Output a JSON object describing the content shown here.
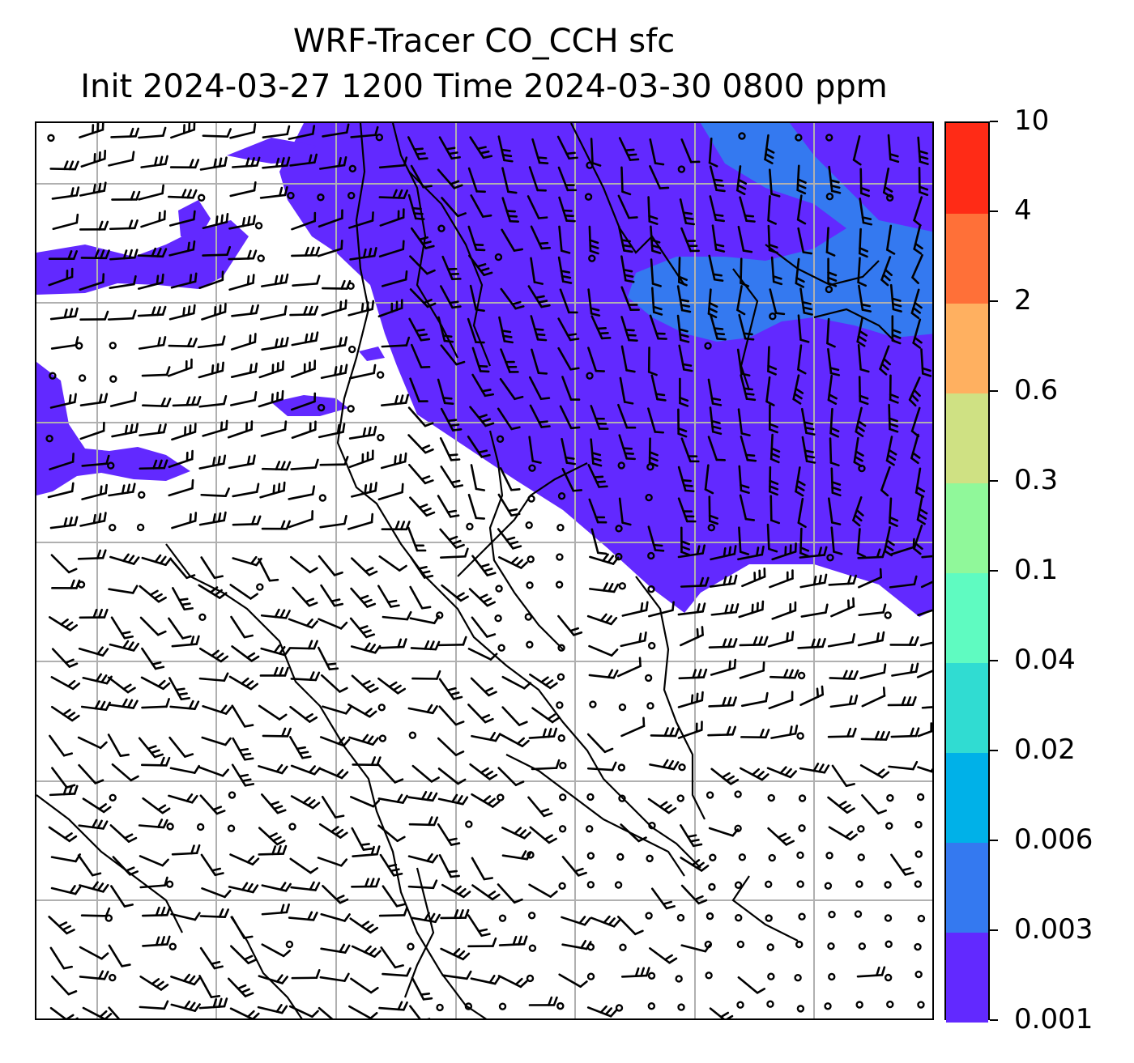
{
  "title": {
    "line1": "WRF-Tracer CO_CCH sfc",
    "line2": "Init 2024-03-27 1200 Time 2024-03-30 0800 ppm"
  },
  "colorbar": {
    "labels": [
      "0.001",
      "0.003",
      "0.006",
      "0.02",
      "0.04",
      "0.1",
      "0.3",
      "0.6",
      "2",
      "4",
      "10"
    ],
    "colors": [
      "#6229ff",
      "#3479f0",
      "#00b1e8",
      "#30dcd2",
      "#5ffbc1",
      "#90f89a",
      "#cfe183",
      "#ffb060",
      "#ff7038",
      "#ff2b16"
    ]
  },
  "map": {
    "features": [
      "wind-barbs",
      "coastlines",
      "country-borders",
      "lat-lon-grid",
      "co-tracer-fill"
    ],
    "land_color": "#ffffff",
    "grid_color": "#b0b0b0",
    "line_color": "#000000"
  }
}
